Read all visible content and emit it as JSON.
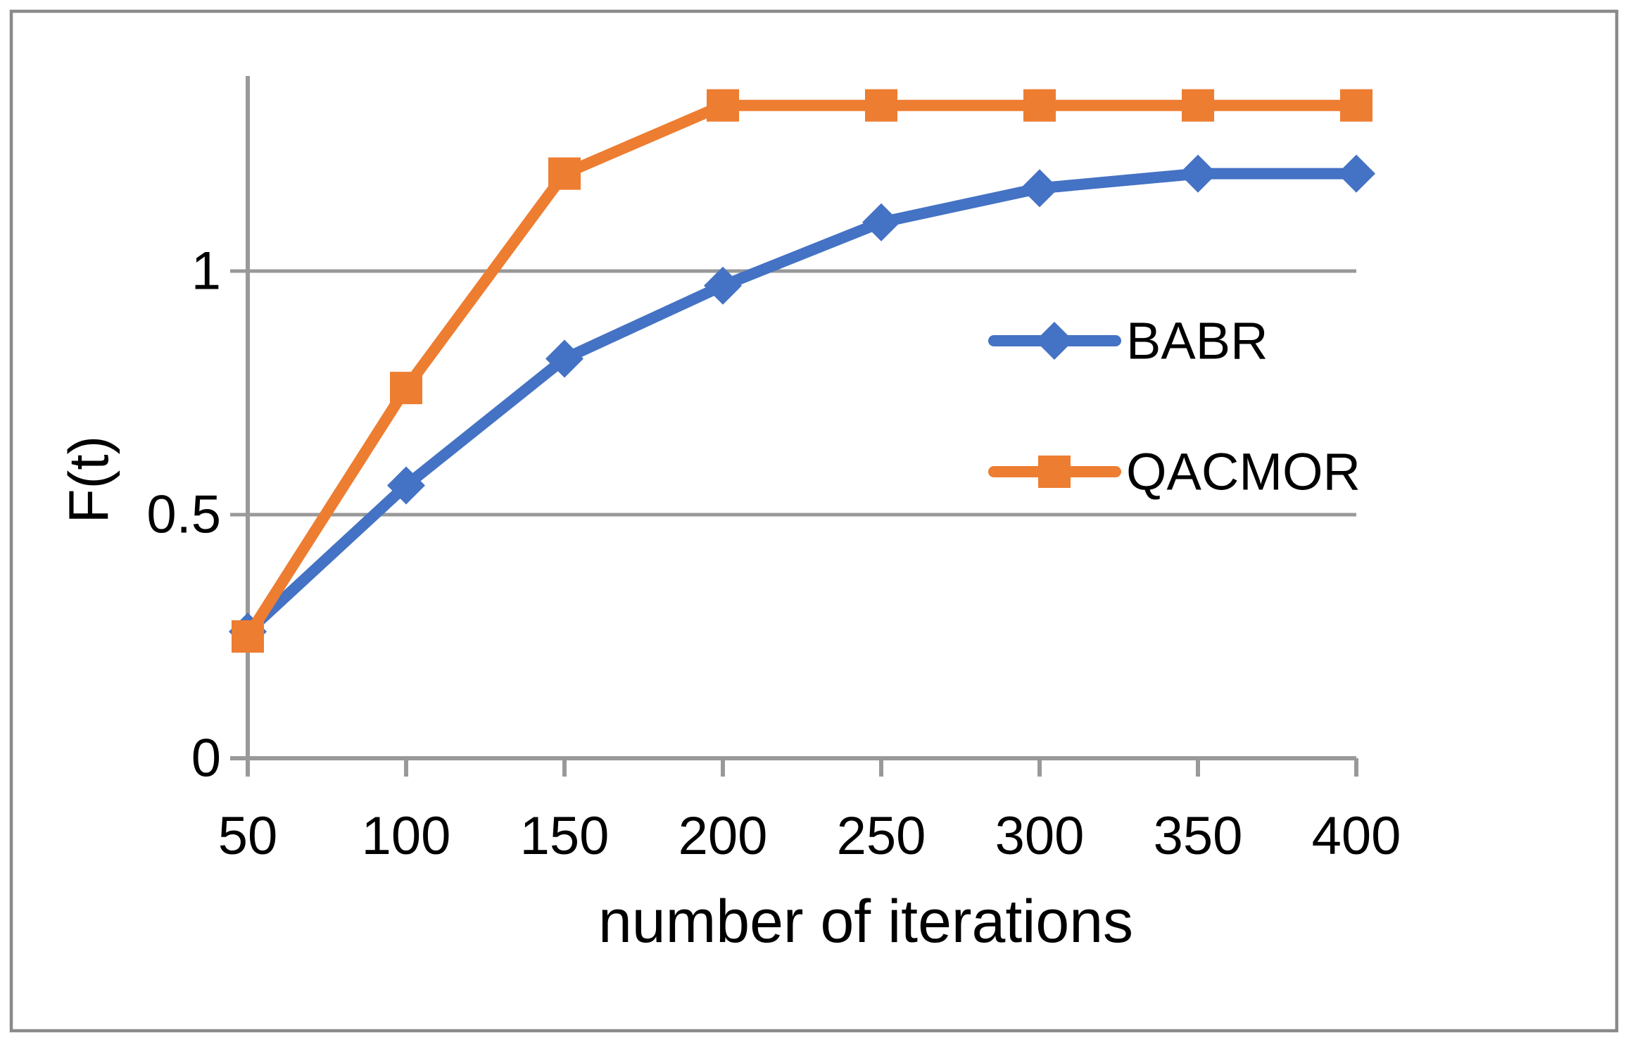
{
  "figure": {
    "background": "#ffffff",
    "border_color": "#8A8A8A"
  },
  "chart_data": {
    "type": "line",
    "title": "",
    "xlabel": "number of iterations",
    "ylabel": "F(t)",
    "x": [
      50,
      100,
      150,
      200,
      250,
      300,
      350,
      400
    ],
    "x_tick_labels": [
      "50",
      "100",
      "150",
      "200",
      "250",
      "300",
      "350",
      "400"
    ],
    "y_ticks": [
      0,
      0.5,
      1
    ],
    "y_tick_labels": [
      "0",
      "0.5",
      "1"
    ],
    "xlim": [
      50,
      400
    ],
    "ylim": [
      0,
      1.4
    ],
    "grid": "horizontal gridlines at 0.5 and 1, tick marks below x axis",
    "legend_position": "inside-right",
    "axis_color": "#999999",
    "gridline_color": "#999999",
    "text_color": "#000000",
    "series": [
      {
        "name": "BABR",
        "color": "#4472C4",
        "marker": "diamond",
        "values": [
          0.26,
          0.56,
          0.82,
          0.97,
          1.1,
          1.17,
          1.2,
          1.2
        ]
      },
      {
        "name": "QACMOR",
        "color": "#ED7D31",
        "marker": "square",
        "values": [
          0.25,
          0.76,
          1.2,
          1.34,
          1.34,
          1.34,
          1.34,
          1.34
        ]
      }
    ]
  }
}
